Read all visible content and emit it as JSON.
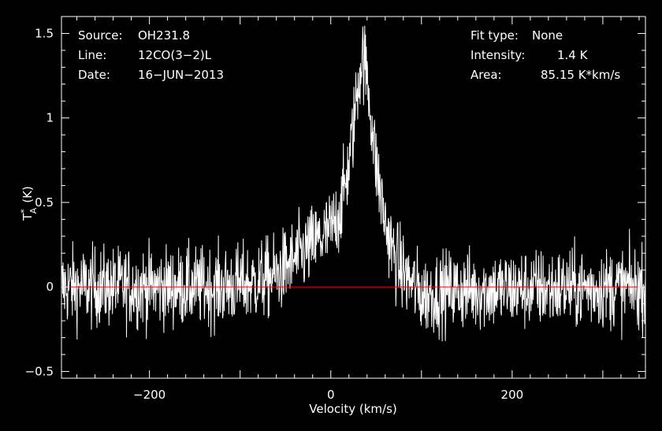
{
  "chart_data": {
    "type": "line",
    "background": "#000000",
    "colors": {
      "spectrum": "#ffffff",
      "baseline": "#ff0000",
      "frame": "#ffffff",
      "text": "#ffffff"
    },
    "title": "",
    "xlabel": "Velocity (km/s)",
    "ylabel": {
      "base": "T",
      "superscript": "*",
      "subscript": "A",
      "unit": "(K)"
    },
    "xlim": [
      -297,
      347
    ],
    "ylim": [
      -0.54,
      1.6
    ],
    "xticks": [
      {
        "value": -200,
        "label": "−200"
      },
      {
        "value": 0,
        "label": "0"
      },
      {
        "value": 200,
        "label": "200"
      }
    ],
    "yticks": [
      {
        "value": -0.5,
        "label": "−0.5"
      },
      {
        "value": 0,
        "label": "0"
      },
      {
        "value": 0.5,
        "label": "0.5"
      },
      {
        "value": 1,
        "label": "1"
      },
      {
        "value": 1.5,
        "label": "1.5"
      }
    ],
    "baseline_value": 0,
    "info_left": [
      {
        "key": "Source:",
        "value": "OH231.8"
      },
      {
        "key": "Line:",
        "value": "12CO(3−2)L"
      },
      {
        "key": "Date:",
        "value": "16−JUN−2013"
      }
    ],
    "info_right": [
      {
        "key": "Fit type:",
        "value": "None"
      },
      {
        "key": "Intensity:",
        "value": "1.4 K"
      },
      {
        "key": "Area:",
        "value": "85.15 K*km/s"
      }
    ],
    "series": [
      {
        "noise_rms": 0.12,
        "x": [
          -297,
          -120,
          -90,
          -60,
          -40,
          -20,
          0,
          10,
          20,
          25,
          30,
          35,
          40,
          45,
          50,
          60,
          70,
          80,
          90,
          100,
          130,
          347
        ],
        "y": [
          0.0,
          0.0,
          0.02,
          0.07,
          0.16,
          0.25,
          0.33,
          0.45,
          0.72,
          0.95,
          1.2,
          1.38,
          1.25,
          0.98,
          0.72,
          0.38,
          0.18,
          0.08,
          0.02,
          -0.05,
          -0.02,
          0.0
        ]
      }
    ]
  }
}
